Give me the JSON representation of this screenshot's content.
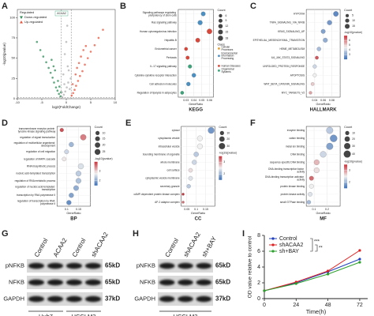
{
  "chart_data": [
    {
      "panel": "A",
      "type": "scatter",
      "xlabel": "log2(FoldChange)",
      "ylabel": "-log10(pvalue)",
      "legend_title": "Regulated",
      "annotation": "ACAA2",
      "xlim": [
        -10,
        10
      ],
      "xticks": [
        -10,
        -5,
        0,
        5,
        10
      ],
      "ylim": [
        0,
        110
      ],
      "yticks": [
        0,
        25,
        50,
        75,
        100
      ],
      "thresholds": {
        "x": [
          -1,
          1
        ],
        "y": 1.3
      },
      "series": [
        {
          "name": "Down-regulated",
          "color": "#2e8b57",
          "marker": "down",
          "x": [
            -1.2,
            -1.5,
            -1.8,
            -2.1,
            -2.5,
            -2.8,
            -3.2,
            -3.6,
            -4.1,
            -4.7,
            -5.3,
            -6,
            -1.4,
            -2.3,
            -3,
            -1.1,
            -1.7,
            -2.6
          ],
          "values": [
            3,
            6,
            10,
            14,
            20,
            26,
            32,
            38,
            45,
            52,
            60,
            70,
            15,
            35,
            48,
            8,
            22,
            40
          ]
        },
        {
          "name": "Up-regulated",
          "color": "#e8553f",
          "marker": "up",
          "x": [
            1.1,
            1.4,
            1.7,
            2,
            2.4,
            2.8,
            3.3,
            3.8,
            4.4,
            5,
            5.8,
            6.6,
            7.5,
            1.3,
            2.2,
            3,
            4,
            1.9,
            2.6,
            3.5
          ],
          "values": [
            4,
            7,
            11,
            16,
            22,
            28,
            34,
            42,
            50,
            58,
            66,
            75,
            85,
            18,
            38,
            52,
            65,
            30,
            44,
            60
          ]
        },
        {
          "color": "#b0b0b0",
          "x": [
            -0.8,
            -0.5,
            -0.2,
            0.1,
            0.4,
            0.7,
            -0.6,
            0.3,
            0.9,
            -0.9,
            -0.3,
            0.5,
            0,
            0.2,
            -0.4
          ],
          "values": [
            2,
            5,
            9,
            14,
            20,
            12,
            30,
            40,
            25,
            8,
            55,
            35,
            70,
            90,
            18
          ]
        }
      ]
    },
    {
      "panel": "B",
      "type": "dot",
      "title": "KEGG",
      "xlabel": "GeneRatio",
      "categories": [
        "Signaling pathways regulating pluripotency of stem cells",
        "Ras signaling pathway",
        "Human cytomegalovirus infection",
        "Hepatitis B",
        "Endometrial cancer",
        "Pertussis",
        "IL-17 signaling pathway",
        "Cytokine-cytokine receptor interaction",
        "Cell adhesion molecules",
        "Regulation of lipolysis in adipocytes"
      ],
      "values": [
        0.052,
        0.048,
        0.06,
        0.045,
        0.03,
        0.032,
        0.035,
        0.04,
        0.033,
        0.025
      ],
      "sizes": [
        12,
        14,
        18,
        12,
        6,
        7,
        8,
        10,
        9,
        6
      ],
      "colors": [
        "#4a90c2",
        "#4a90c2",
        "#d9473a",
        "#d9473a",
        "#d9473a",
        "#d9473a",
        "#3aa57a",
        "#4a90c2",
        "#4a90c2",
        "#3aa57a"
      ],
      "xlim": [
        0.02,
        0.065
      ],
      "xticks": [
        0.03,
        0.04,
        0.05,
        0.06
      ],
      "size_title": "Count",
      "size_ticks": [
        6,
        9,
        12,
        15,
        18
      ],
      "class_title": "Class",
      "classes": [
        {
          "name": "Cellular Processes",
          "color": "#e0a030"
        },
        {
          "name": "Environmental Information Processing",
          "color": "#4a90c2"
        },
        {
          "name": "Human Diseases",
          "color": "#d9473a"
        },
        {
          "name": "Organismal Systems",
          "color": "#3aa57a"
        }
      ]
    },
    {
      "panel": "C",
      "type": "dot",
      "title": "HALLMARK",
      "xlabel": "GeneRatio",
      "categories": [
        "HYPOXIA",
        "TNFA_SIGNALING_VIA_NFKB",
        "KRAS_SIGNALING_UP",
        "EPITHELIAL_MESENCHYMAL_TRANSITION",
        "HEME_METABOLISM",
        "IL6_JAK_STAT3_SIGNALING",
        "UNFOLDED_PROTEIN_RESPONSE",
        "APOPTOSIS",
        "WNT_BETA_CATENIN_SIGNALING",
        "MYC_TARGETS_V2"
      ],
      "values": [
        0.09,
        0.075,
        0.06,
        0.065,
        0.05,
        0.045,
        0.04,
        0.04,
        0.035,
        0.03
      ],
      "sizes": [
        18,
        15,
        12,
        13,
        10,
        6,
        8,
        7,
        5,
        4
      ],
      "pvalues": [
        2.5,
        2.8,
        3,
        3.2,
        3.5,
        6.5,
        4,
        4.5,
        5,
        5.5
      ],
      "xlim": [
        0.02,
        0.1
      ],
      "xticks": [
        0.04,
        0.06,
        0.08
      ],
      "size_title": "Count",
      "size_ticks": [
        5,
        10,
        15
      ],
      "color_title": "-log10(pvalue)",
      "color_lim": [
        2,
        7
      ],
      "color_ticks": [
        3,
        4,
        5,
        6
      ]
    },
    {
      "panel": "D",
      "type": "dot",
      "title": "BP",
      "xlabel": "GeneRatio",
      "categories": [
        "transmembrane receptor protein tyrosine kinase signaling pathway",
        "regulation of signal transduction",
        "regulation of multicellular organismal development",
        "regulation of cell migration",
        "regulation of MAPK cascade",
        "RNA biosynthetic process",
        "nucleic acid-templated transcription",
        "regulation of RNA metabolic process",
        "regulation of nucleic acid-templated transcription",
        "transcription by RNA polymerase II",
        "regulation of transcription by RNA polymerase II"
      ],
      "values": [
        0.08,
        0.17,
        0.12,
        0.1,
        0.09,
        0.16,
        0.15,
        0.15,
        0.14,
        0.12,
        0.11
      ],
      "sizes": [
        8,
        25,
        15,
        12,
        10,
        22,
        20,
        20,
        18,
        15,
        14
      ],
      "pvalues": [
        3.8,
        3.5,
        2.2,
        2.5,
        2.8,
        2.6,
        2.4,
        2.3,
        2.1,
        2,
        1.8
      ],
      "xlim": [
        0.06,
        0.2
      ],
      "xticks": [
        0.1,
        0.15
      ],
      "size_title": "Count",
      "size_ticks": [
        10,
        15,
        20,
        25
      ],
      "color_title": "-log10(pvalue)",
      "color_lim": [
        1.5,
        4
      ],
      "color_ticks": [
        2,
        3
      ]
    },
    {
      "panel": "E",
      "type": "dot",
      "title": "CC",
      "xlabel": "GeneRatio",
      "categories": [
        "cytosol",
        "cytoplasmic vesicle",
        "intracellular vesicle",
        "bounding membrane of organelle",
        "whole membrane",
        "cell surface",
        "cytoplasmic vesicle membrane",
        "secretory granule",
        "cAMP-dependent protein kinase complex",
        "AP-2 adaptor complex"
      ],
      "values": [
        0.18,
        0.12,
        0.12,
        0.1,
        0.09,
        0.07,
        0.07,
        0.06,
        0.03,
        0.03
      ],
      "sizes": [
        30,
        20,
        20,
        16,
        14,
        10,
        11,
        9,
        2,
        2
      ],
      "pvalues": [
        1.8,
        2.5,
        2.5,
        2.2,
        2.3,
        2.6,
        2.4,
        2.2,
        3.5,
        3.2
      ],
      "xlim": [
        0.02,
        0.2
      ],
      "xticks": [
        0.05,
        0.1,
        0.15
      ],
      "size_title": "Count",
      "size_ticks": [
        10,
        20,
        30
      ],
      "color_title": "-log10(pvalue)",
      "color_lim": [
        1.5,
        3.5
      ],
      "color_ticks": [
        2,
        3
      ]
    },
    {
      "panel": "F",
      "type": "dot",
      "title": "MF",
      "xlabel": "GeneRatio",
      "categories": [
        "enzyme binding",
        "cation binding",
        "metal ion binding",
        "DNA binding",
        "sequence-specific DNA binding",
        "DNA-binding transcription factor activity",
        "DNA-binding transcription activator activity",
        "protein kinase binding",
        "protein kinase activity",
        "small GTPase binding"
      ],
      "values": [
        0.22,
        0.25,
        0.22,
        0.17,
        0.12,
        0.12,
        0.08,
        0.08,
        0.07,
        0.06
      ],
      "sizes": [
        35,
        40,
        35,
        28,
        20,
        20,
        12,
        12,
        11,
        9
      ],
      "pvalues": [
        2.2,
        1.8,
        1.9,
        2.3,
        2.8,
        2.6,
        3.2,
        2.5,
        2.4,
        2.1
      ],
      "xlim": [
        0.04,
        0.3
      ],
      "xticks": [
        0.1,
        0.2
      ],
      "size_title": "Count",
      "size_ticks": [
        10,
        20,
        30,
        40
      ],
      "color_title": "-log10(pvalue)",
      "color_lim": [
        1.5,
        3.5
      ],
      "color_ticks": [
        2,
        3
      ]
    },
    {
      "panel": "I",
      "type": "line",
      "xlabel": "Time(h)",
      "ylabel": "OD value relative to control",
      "x": [
        0,
        24,
        48,
        72
      ],
      "xlim": [
        0,
        78
      ],
      "xticks": [
        0,
        24,
        48,
        72
      ],
      "ylim": [
        0,
        8
      ],
      "yticks": [
        0,
        2,
        4,
        6,
        8
      ],
      "series": [
        {
          "name": "Control",
          "color": "#1f3fbf",
          "values": [
            1,
            2.0,
            3.4,
            5.0
          ]
        },
        {
          "name": "shACAA2",
          "color": "#e02020",
          "values": [
            1,
            2.1,
            3.5,
            6.1
          ]
        },
        {
          "name": "sh+BAY",
          "color": "#2ca02c",
          "values": [
            1,
            1.9,
            3.1,
            4.6
          ]
        }
      ],
      "annotations": [
        "***",
        "**"
      ]
    }
  ],
  "blots": [
    {
      "panel": "G",
      "lanes": [
        "Control",
        "ACAA2",
        "Control",
        "shACAA2"
      ],
      "rows": [
        {
          "protein": "pNFKB",
          "size": "65kD"
        },
        {
          "protein": "NFKB",
          "size": "65kD"
        },
        {
          "protein": "GAPDH",
          "size": "37kD"
        }
      ],
      "groups": [
        "Huh7",
        "HCCLM3"
      ]
    },
    {
      "panel": "H",
      "lanes": [
        "Control",
        "shACAA2",
        "sh+BAY"
      ],
      "rows": [
        {
          "protein": "pNFKB",
          "size": "65kD"
        },
        {
          "protein": "NFKB",
          "size": "65kD"
        },
        {
          "protein": "GAPDH",
          "size": "37kD"
        }
      ],
      "groups": [
        "HCCLM3"
      ]
    }
  ]
}
